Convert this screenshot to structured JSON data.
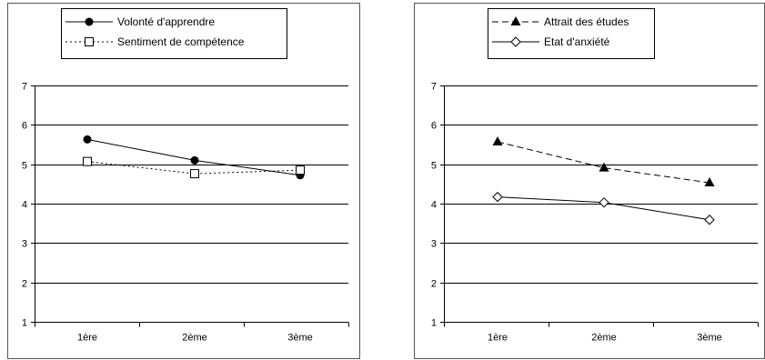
{
  "chart_data": [
    {
      "type": "line",
      "categories": [
        "1ère",
        "2ème",
        "3ème"
      ],
      "ylim": [
        1,
        7
      ],
      "yticks": [
        1,
        2,
        3,
        4,
        5,
        6,
        7
      ],
      "grid": true,
      "legend_position": "top",
      "series": [
        {
          "name": "Volonté d'apprendre",
          "values": [
            5.63,
            5.1,
            4.72
          ],
          "line_style": "solid",
          "marker": "filled-circle",
          "color": "#000000"
        },
        {
          "name": "Sentiment de compétence",
          "values": [
            5.07,
            4.76,
            4.85
          ],
          "line_style": "dotted",
          "marker": "open-square",
          "color": "#000000"
        }
      ]
    },
    {
      "type": "line",
      "categories": [
        "1ère",
        "2ème",
        "3ème"
      ],
      "ylim": [
        1,
        7
      ],
      "yticks": [
        1,
        2,
        3,
        4,
        5,
        6,
        7
      ],
      "grid": true,
      "legend_position": "top",
      "series": [
        {
          "name": "Attrait des études",
          "values": [
            5.57,
            4.91,
            4.53
          ],
          "line_style": "dashed",
          "marker": "filled-triangle",
          "color": "#000000"
        },
        {
          "name": "Etat d'anxiété",
          "values": [
            4.17,
            4.03,
            3.59
          ],
          "line_style": "solid",
          "marker": "open-diamond",
          "color": "#000000"
        }
      ]
    }
  ]
}
